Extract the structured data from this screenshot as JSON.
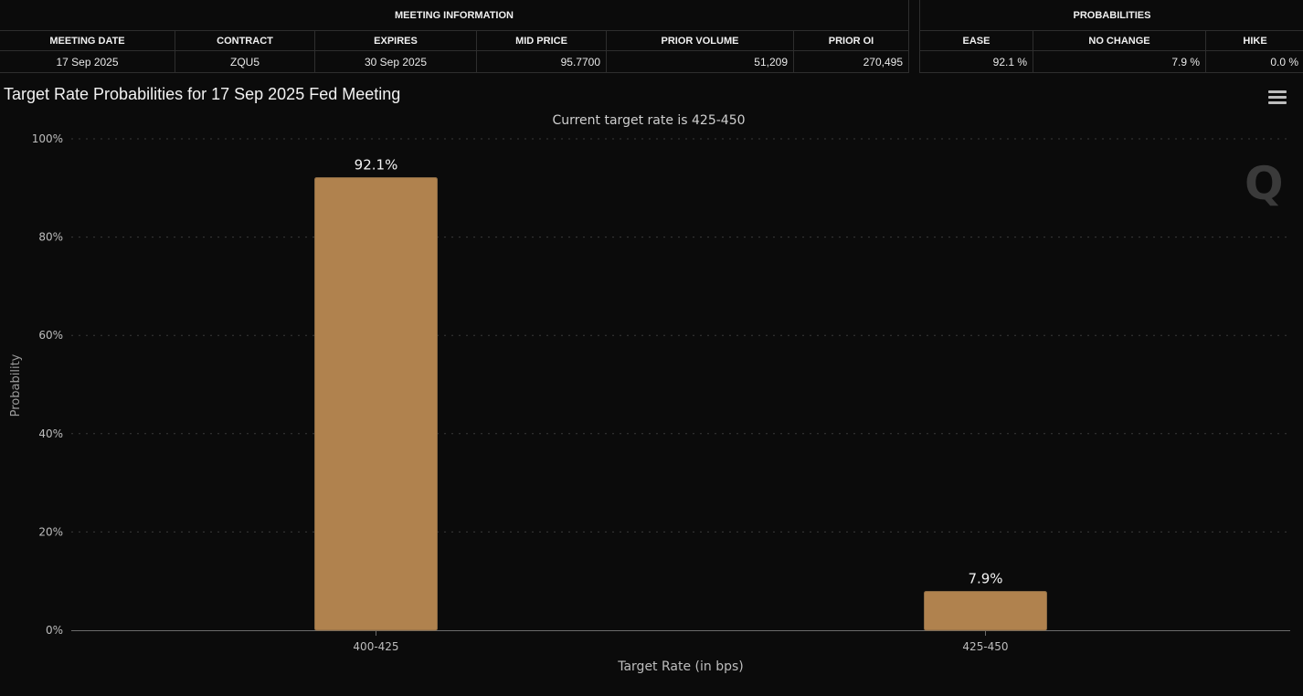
{
  "meeting_info": {
    "group_label": "MEETING INFORMATION",
    "headers": [
      "MEETING DATE",
      "CONTRACT",
      "EXPIRES",
      "MID PRICE",
      "PRIOR VOLUME",
      "PRIOR OI"
    ],
    "values": [
      "17 Sep 2025",
      "ZQU5",
      "30 Sep 2025",
      "95.7700",
      "51,209",
      "270,495"
    ]
  },
  "probabilities": {
    "group_label": "PROBABILITIES",
    "headers": [
      "EASE",
      "NO CHANGE",
      "HIKE"
    ],
    "values": [
      "92.1 %",
      "7.9 %",
      "0.0 %"
    ]
  },
  "watermark": "Q",
  "colors": {
    "bar": "#b0824e",
    "background": "#0b0b0b",
    "grid": "#3a3a3a"
  },
  "icons": {
    "menu": "hamburger-menu-icon"
  },
  "chart_data": {
    "type": "bar",
    "title": "Target Rate Probabilities for 17 Sep 2025 Fed Meeting",
    "subtitle": "Current target rate is 425-450",
    "xlabel": "Target Rate (in bps)",
    "ylabel": "Probability",
    "categories": [
      "400-425",
      "425-450"
    ],
    "values": [
      92.1,
      7.9
    ],
    "data_labels": [
      "92.1%",
      "7.9%"
    ],
    "ylim": [
      0,
      100
    ],
    "yticks": [
      0,
      20,
      40,
      60,
      80,
      100
    ],
    "ytick_labels": [
      "0%",
      "20%",
      "40%",
      "60%",
      "80%",
      "100%"
    ],
    "grid": true,
    "legend": "none"
  }
}
